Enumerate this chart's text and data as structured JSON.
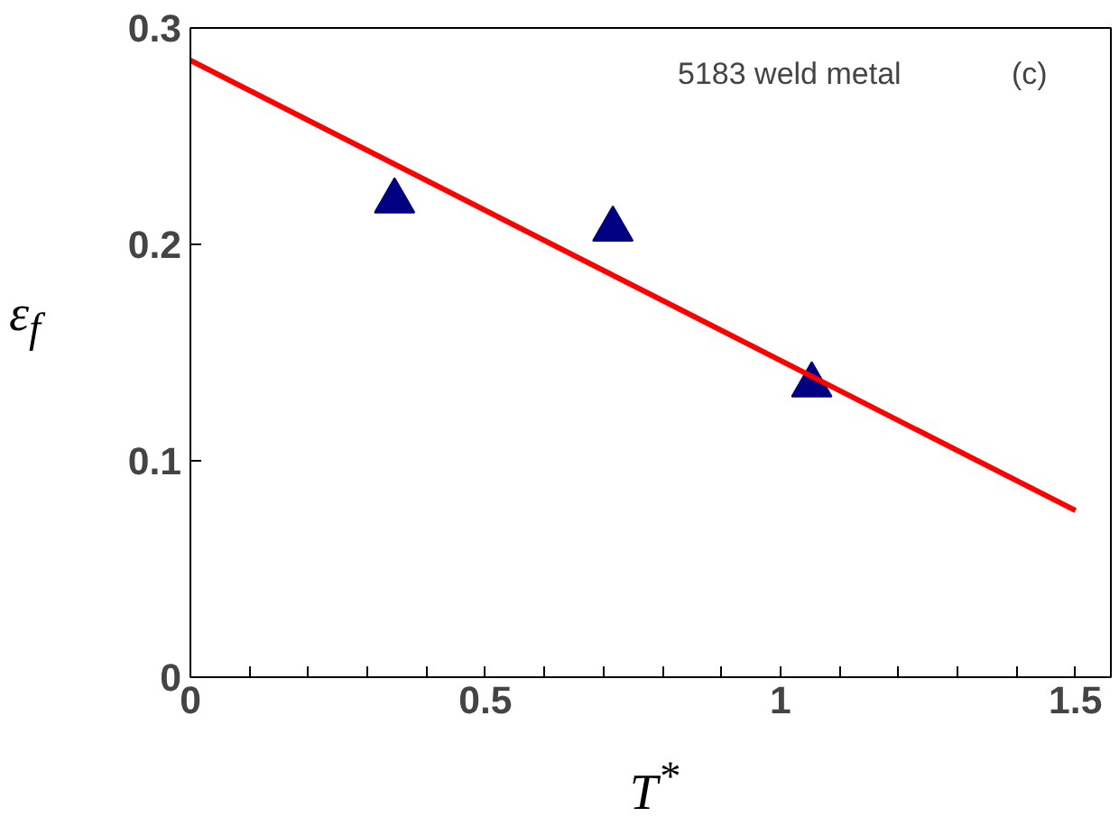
{
  "chart_data": {
    "type": "scatter",
    "xlabel": "T$^{*}$",
    "ylabel": "ε$_{f}$",
    "annotations": [
      "5183 weld metal",
      "(c)"
    ],
    "series": [
      {
        "color": "#000080",
        "marker": "triangle",
        "x": [
          0.346,
          0.716,
          1.053
        ],
        "values": [
          0.22,
          0.207,
          0.135
        ]
      },
      {
        "type": "line",
        "color": "#ff0000",
        "marker": "none",
        "x": [
          0,
          1.5
        ],
        "values": [
          0.285,
          0.077
        ]
      }
    ],
    "xlim": [
      0,
      1.56
    ],
    "ylim": [
      0,
      0.3
    ],
    "xticks": [
      0,
      {
        "value": 0.1,
        "label": null
      },
      {
        "value": 0.2,
        "label": null
      },
      {
        "value": 0.3,
        "label": null
      },
      {
        "value": 0.4,
        "label": null
      },
      0.5,
      {
        "value": 0.6,
        "label": null
      },
      {
        "value": 0.7,
        "label": null
      },
      {
        "value": 0.8,
        "label": null
      },
      {
        "value": 0.9,
        "label": null
      },
      1,
      {
        "value": 1.1,
        "label": null
      },
      {
        "value": 1.2,
        "label": null
      },
      {
        "value": 1.3,
        "label": null
      },
      {
        "value": 1.4,
        "label": null
      },
      1.5
    ],
    "yticks": [
      0,
      0.1,
      0.2,
      0.3
    ],
    "grid": false
  }
}
